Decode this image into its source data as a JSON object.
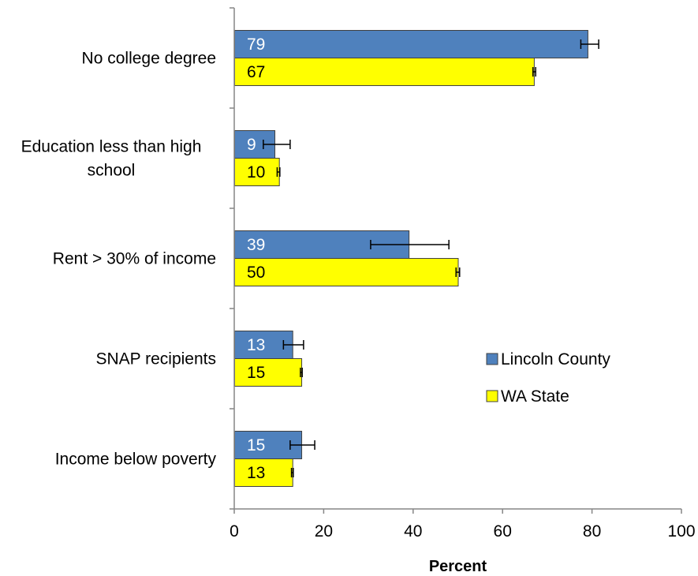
{
  "chart_data": {
    "type": "bar",
    "orientation": "horizontal",
    "title": "",
    "xlabel": "Percent",
    "ylabel": "",
    "xlim": [
      0,
      100
    ],
    "xticks": [
      0,
      20,
      40,
      60,
      80,
      100
    ],
    "grid": false,
    "legend_position": "right",
    "categories": [
      [
        "No college degree"
      ],
      [
        "Education less than high",
        "school"
      ],
      [
        "Rent > 30% of income"
      ],
      [
        "SNAP recipients"
      ],
      [
        "Income below poverty"
      ]
    ],
    "series": [
      {
        "name": "Lincoln County",
        "color": "#4f81bd",
        "label_color": "#ffffff",
        "values": [
          79,
          9,
          39,
          13,
          15
        ],
        "error_low": [
          77.5,
          6.5,
          30.5,
          11,
          12.5
        ],
        "error_high": [
          81.5,
          12.5,
          48,
          15.5,
          18
        ]
      },
      {
        "name": "WA State",
        "color": "#ffff00",
        "label_color": "#000000",
        "values": [
          67,
          10,
          50,
          15,
          13
        ],
        "error_low": [
          66.8,
          9.6,
          49.6,
          14.8,
          12.8
        ],
        "error_high": [
          67.4,
          10.2,
          50.4,
          15.2,
          13.2
        ]
      }
    ]
  }
}
